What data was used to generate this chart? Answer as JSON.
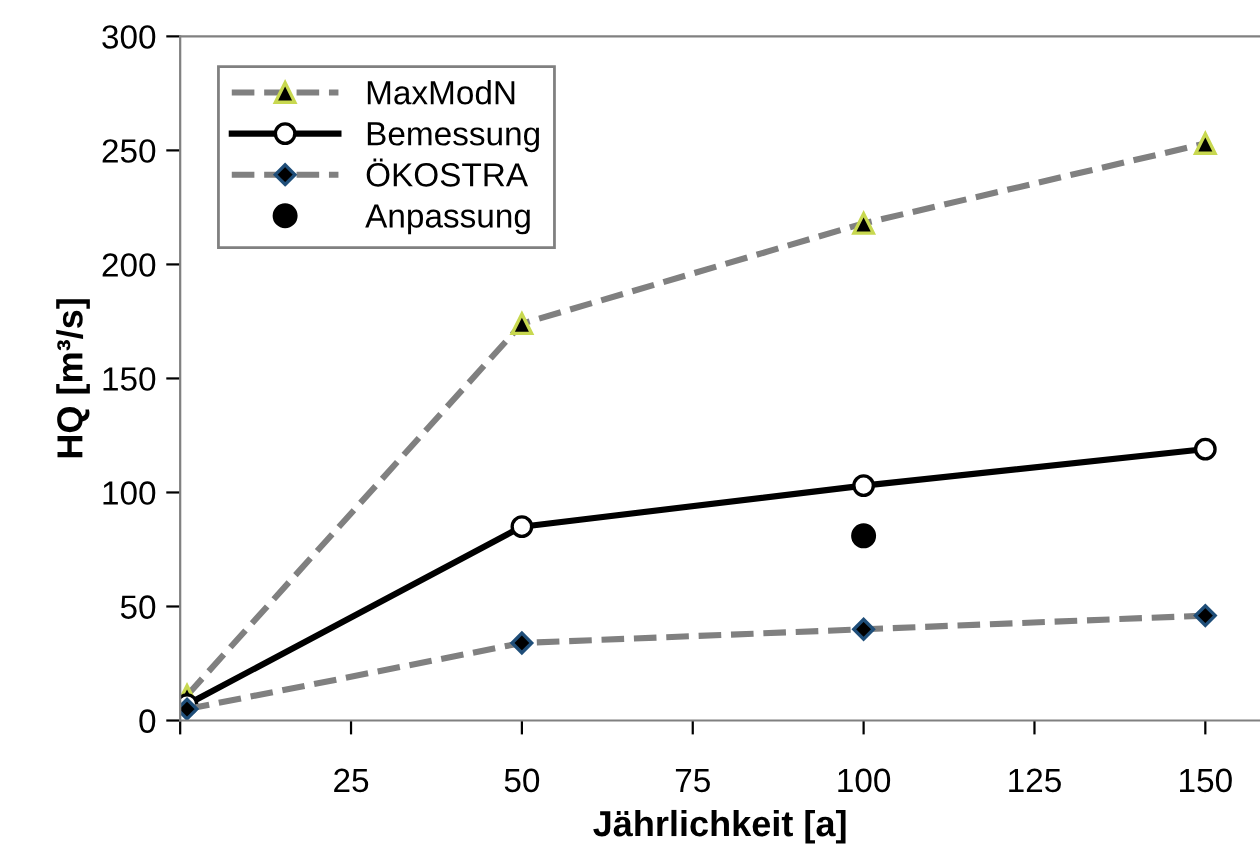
{
  "chart_data": {
    "type": "line",
    "xlabel": "Jährlichkeit [a]",
    "ylabel": "HQ [m³/s]",
    "xlim": [
      0,
      158
    ],
    "xticks": [
      {
        "value": 0,
        "label": null
      },
      25,
      50,
      75,
      100,
      125,
      150
    ],
    "ylim": [
      0,
      300
    ],
    "yticks": [
      0,
      50,
      100,
      150,
      200,
      250,
      300
    ],
    "grid": false,
    "legend": "top left",
    "series": [
      {
        "name": "MaxModN",
        "color": "#808080",
        "x": [
          1,
          50,
          100,
          150
        ],
        "values": [
          11,
          174,
          218,
          253
        ],
        "marker": "triangle",
        "line_style": "dashed"
      },
      {
        "name": "Bemessung",
        "color": "#000000",
        "x": [
          1,
          50,
          100,
          150
        ],
        "values": [
          7,
          85,
          103,
          119
        ],
        "marker": "circle",
        "line_style": "solid"
      },
      {
        "name": "ÖKOSTRA",
        "color": "#808080",
        "x": [
          1,
          50,
          100,
          150
        ],
        "values": [
          5,
          34,
          40,
          46
        ],
        "marker": "diamond",
        "line_style": "dashed"
      },
      {
        "name": "Anpassung",
        "type": "scatter",
        "color": "#000000",
        "x": [
          100
        ],
        "values": [
          81
        ],
        "marker": "circle"
      }
    ]
  }
}
